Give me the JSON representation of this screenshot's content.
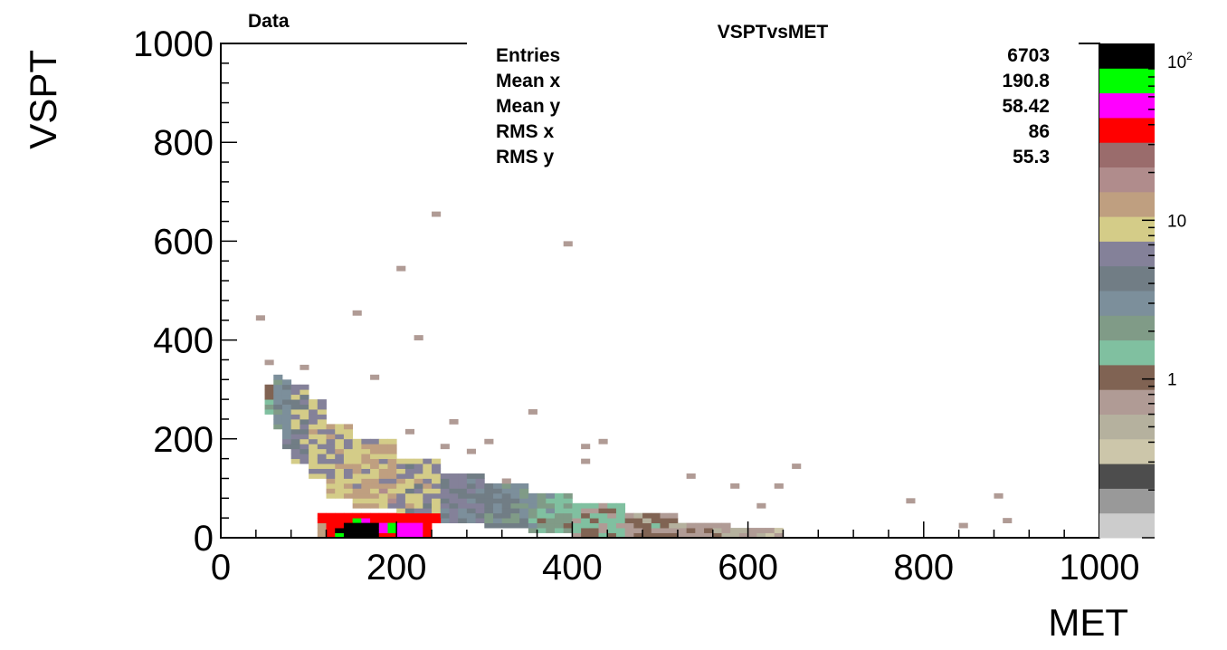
{
  "pad_label": "Data",
  "stats": {
    "title": "VSPTvsMET",
    "rows": [
      {
        "name": "Entries",
        "value": "6703"
      },
      {
        "name": "Mean x",
        "value": "190.8"
      },
      {
        "name": "Mean y",
        "value": "58.42"
      },
      {
        "name": "RMS x",
        "value": "86"
      },
      {
        "name": "RMS y",
        "value": "55.3"
      }
    ]
  },
  "chart_data": {
    "type": "heatmap",
    "title": "VSPTvsMET",
    "xlabel": "MET",
    "ylabel": "VSPT",
    "xlim": [
      0,
      1000
    ],
    "ylim": [
      0,
      1000
    ],
    "xticks": [
      "0",
      "200",
      "400",
      "600",
      "800",
      "1000"
    ],
    "yticks": [
      "0",
      "200",
      "400",
      "600",
      "800",
      "1000"
    ],
    "z_scale": "log",
    "zlim": [
      0.1,
      130
    ],
    "z_tick_labels": [
      {
        "value": 1,
        "mantissa": "1",
        "exponent": ""
      },
      {
        "value": 10,
        "mantissa": "10",
        "exponent": ""
      },
      {
        "value": 100,
        "mantissa": "10",
        "exponent": "2"
      }
    ],
    "bin_size": [
      10,
      10
    ],
    "palette": [
      "#cccccc",
      "#999999",
      "#4d4d4d",
      "#ccc6aa",
      "#b5b19e",
      "#b09b95",
      "#806353",
      "#80c0a0",
      "#809b87",
      "#7c8f9b",
      "#717d85",
      "#848199",
      "#d4cc88",
      "#bf9f80",
      "#b08c8c",
      "#9a6c6c",
      "#ff0000",
      "#ff00ff",
      "#00ff00",
      "#000000"
    ],
    "cells": [
      [
        40,
        440,
        0.8
      ],
      [
        240,
        650,
        0.8
      ],
      [
        390,
        590,
        0.8
      ],
      [
        200,
        540,
        0.8
      ],
      [
        220,
        400,
        0.8
      ],
      [
        50,
        350,
        0.8
      ],
      [
        90,
        340,
        0.8
      ],
      [
        170,
        320,
        0.8
      ],
      [
        350,
        250,
        0.8
      ],
      [
        260,
        230,
        0.8
      ],
      [
        650,
        140,
        0.8
      ],
      [
        630,
        100,
        0.8
      ],
      [
        880,
        80,
        0.8
      ],
      [
        780,
        70,
        0.8
      ],
      [
        890,
        30,
        0.8
      ],
      [
        840,
        20,
        0.8
      ],
      [
        530,
        120,
        0.8
      ],
      [
        410,
        150,
        0.8
      ],
      [
        430,
        190,
        0.8
      ],
      [
        300,
        190,
        0.8
      ],
      [
        210,
        210,
        0.8
      ],
      [
        280,
        170,
        0.8
      ],
      [
        250,
        180,
        0.8
      ],
      [
        320,
        110,
        0.8
      ],
      [
        580,
        100,
        0.8
      ],
      [
        610,
        60,
        0.8
      ],
      [
        150,
        450,
        0.8
      ],
      [
        430,
        190,
        0.8
      ],
      [
        410,
        180,
        0.8
      ]
    ],
    "regions": [
      {
        "x": [
          50,
          60
        ],
        "y": [
          250,
          310
        ],
        "z": 1.5
      },
      {
        "x": [
          60,
          70
        ],
        "y": [
          220,
          330
        ],
        "z": 3
      },
      {
        "x": [
          70,
          80
        ],
        "y": [
          180,
          320
        ],
        "z": 4
      },
      {
        "x": [
          80,
          100
        ],
        "y": [
          150,
          310
        ],
        "z": 6
      },
      {
        "x": [
          100,
          120
        ],
        "y": [
          120,
          280
        ],
        "z": 8
      },
      {
        "x": [
          120,
          150
        ],
        "y": [
          80,
          230
        ],
        "z": 9
      },
      {
        "x": [
          150,
          200
        ],
        "y": [
          60,
          200
        ],
        "z": 11
      },
      {
        "x": [
          200,
          250
        ],
        "y": [
          40,
          160
        ],
        "z": 8
      },
      {
        "x": [
          250,
          300
        ],
        "y": [
          30,
          130
        ],
        "z": 5
      },
      {
        "x": [
          300,
          350
        ],
        "y": [
          20,
          110
        ],
        "z": 3.5
      },
      {
        "x": [
          350,
          400
        ],
        "y": [
          10,
          90
        ],
        "z": 2
      },
      {
        "x": [
          400,
          460
        ],
        "y": [
          0,
          70
        ],
        "z": 1.2
      },
      {
        "x": [
          460,
          520
        ],
        "y": [
          0,
          50
        ],
        "z": 0.9
      },
      {
        "x": [
          520,
          580
        ],
        "y": [
          0,
          30
        ],
        "z": 0.7
      },
      {
        "x": [
          580,
          640
        ],
        "y": [
          0,
          20
        ],
        "z": 0.6
      },
      {
        "x": [
          110,
          130
        ],
        "y": [
          0,
          50
        ],
        "z": 14
      },
      {
        "x": [
          110,
          250
        ],
        "y": [
          30,
          50
        ],
        "z": 35
      },
      {
        "x": [
          120,
          240
        ],
        "y": [
          0,
          30
        ],
        "z": 35
      },
      {
        "x": [
          130,
          140
        ],
        "y": [
          10,
          20
        ],
        "z": 110
      },
      {
        "x": [
          140,
          180
        ],
        "y": [
          0,
          30
        ],
        "z": 110
      },
      {
        "x": [
          150,
          160
        ],
        "y": [
          30,
          40
        ],
        "z": 80
      },
      {
        "x": [
          160,
          170
        ],
        "y": [
          30,
          40
        ],
        "z": 60
      },
      {
        "x": [
          180,
          190
        ],
        "y": [
          10,
          30
        ],
        "z": 60
      },
      {
        "x": [
          190,
          200
        ],
        "y": [
          10,
          30
        ],
        "z": 80
      },
      {
        "x": [
          200,
          230
        ],
        "y": [
          0,
          30
        ],
        "z": 60
      },
      {
        "x": [
          130,
          140
        ],
        "y": [
          0,
          10
        ],
        "z": 80
      }
    ]
  }
}
